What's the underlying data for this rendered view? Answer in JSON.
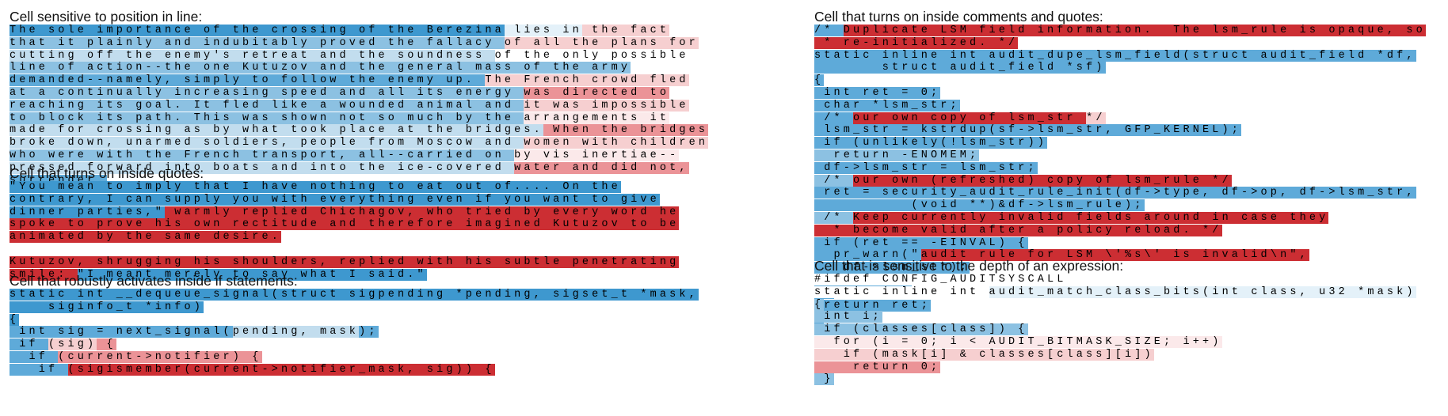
{
  "colors": {
    "scale": [
      "#cc2e33",
      "#dc5a5d",
      "#eb9397",
      "#f6cfd0",
      "#fbe9ea",
      "#ffffff",
      "#e4f1f9",
      "#c2ddee",
      "#8cc1e2",
      "#5eaad9",
      "#3e98cf"
    ]
  },
  "panels": [
    {
      "id": "position",
      "column": "left",
      "top": 11,
      "title": "Cell sensitive to position in line:",
      "lines": [
        [
          [
            "The sole importance of the crossing of the Berezina",
            10
          ],
          [
            " lies in",
            6
          ],
          [
            " the fact",
            3
          ]
        ],
        [
          [
            "that it plainly and indubitably proved the fallacy ",
            8
          ],
          [
            "of all the plans for",
            3
          ]
        ],
        [
          [
            "cutting off the enemy's retreat and the soundness ",
            7
          ],
          [
            "of the only possible",
            5
          ]
        ],
        [
          [
            "line of action--the one Kutuzov and the general mass of the army",
            8
          ]
        ],
        [
          [
            "demanded--namely, simply to follow the enemy up. ",
            9
          ],
          [
            "The French crowd fled",
            3
          ]
        ],
        [
          [
            "at a continually increasing speed and all its energy ",
            8
          ],
          [
            "was directed to",
            2
          ]
        ],
        [
          [
            "reaching its goal. It fled like a wounded animal and ",
            8
          ],
          [
            "it was impossible",
            3
          ]
        ],
        [
          [
            "to block its path. This was shown not so much by the ",
            8
          ],
          [
            "arrangements it",
            4
          ]
        ],
        [
          [
            "made for crossing as by what took place at the bridges.",
            7
          ],
          [
            " When the bridges",
            2
          ]
        ],
        [
          [
            "broke down, unarmed soldiers, people from Moscow and ",
            7
          ],
          [
            "women with children",
            3
          ]
        ],
        [
          [
            "who were with the French transport, all--carried on ",
            8
          ],
          [
            "by vis inertiae--",
            4
          ]
        ],
        [
          [
            "pressed forward into boats and into the ice-covered ",
            7
          ],
          [
            "water and did not,",
            2
          ]
        ],
        [
          [
            "surrender.",
            9
          ]
        ]
      ]
    },
    {
      "id": "quotes",
      "column": "left",
      "top": 209,
      "title": "Cell that turns on inside quotes:",
      "lines": [
        [
          [
            "\"You mean to imply that I have nothing to eat out of.... On the",
            10
          ]
        ],
        [
          [
            "contrary, I can supply you with everything even if you want to give",
            10
          ]
        ],
        [
          [
            "dinner parties,\"",
            10
          ],
          [
            " warmly replied Chichagov, who tried by every word he",
            0
          ]
        ],
        [
          [
            "spoke to prove his own rectitude and therefore imagined Kutuzov to be",
            0
          ]
        ],
        [
          [
            "animated by the same desire.",
            0
          ]
        ],
        "",
        [
          [
            "Kutuzov, shrugging his shoulders, replied with his subtle penetrating",
            0
          ]
        ],
        [
          [
            "smile: ",
            0
          ],
          [
            "\"I meant merely to say what I said.\"",
            10
          ]
        ]
      ]
    },
    {
      "id": "if-statements",
      "column": "left",
      "top": 345,
      "title": "Cell that robustly activates inside if statements:",
      "lines": [
        [
          [
            "static int __dequeue_signal(struct sigpending *pending, sigset_t *mask,",
            10
          ]
        ],
        [
          [
            "    siginfo_t *info)",
            10
          ]
        ],
        [
          [
            "{",
            10
          ]
        ],
        [
          [
            " int sig = next_signal(",
            9
          ],
          [
            "pending, mask",
            7
          ],
          [
            ");",
            9
          ]
        ],
        [
          [
            " if ",
            9
          ],
          [
            "(sig)",
            3
          ],
          [
            " {",
            2
          ]
        ],
        [
          [
            "  if ",
            9
          ],
          [
            "(current->notifier)",
            2
          ],
          [
            " {",
            2
          ]
        ],
        [
          [
            "   if ",
            9
          ],
          [
            "(sigismember(current->notifier_mask, sig)) {",
            0
          ]
        ]
      ]
    },
    {
      "id": "comments",
      "column": "right",
      "top": 11,
      "title": "Cell that turns on inside comments and quotes:",
      "lines": [
        [
          [
            "/* ",
            9
          ],
          [
            "Duplicate LSM field information.  The lsm_rule is opaque, so",
            0
          ]
        ],
        [
          [
            " * re-initialized. */",
            0
          ]
        ],
        [
          [
            "static inline int audit_dupe_lsm_field(struct audit_field *df,",
            9
          ]
        ],
        [
          [
            "       struct audit_field *sf)",
            9
          ]
        ],
        [
          [
            "{",
            9
          ]
        ],
        [
          [
            " int ret = 0;",
            9
          ]
        ],
        [
          [
            " char *lsm_str;",
            9
          ]
        ],
        [
          [
            " /* ",
            9
          ],
          [
            "our own copy of lsm_str ",
            0
          ],
          [
            "*/",
            3
          ]
        ],
        [
          [
            " lsm_str = kstrdup(sf->lsm_str, GFP_KERNEL);",
            9
          ]
        ],
        [
          [
            " if (unlikely(!lsm_str))",
            9
          ]
        ],
        [
          [
            "  return -ENOMEM;",
            8
          ]
        ],
        [
          [
            " df->lsm_str = lsm_str;",
            9
          ]
        ],
        [
          [
            " /* ",
            8
          ],
          [
            "our own (refreshed) copy of lsm_rule */",
            0
          ]
        ],
        [
          [
            " ret = security_audit_rule_init(df->type, df->op, df->lsm_str,",
            9
          ]
        ],
        [
          [
            "          (void **)&df->lsm_rule);",
            9
          ]
        ],
        [
          [
            " /* ",
            8
          ],
          [
            "Keep currently invalid fields around in case they",
            0
          ]
        ],
        [
          [
            "  * become valid after a policy reload. */",
            0
          ]
        ],
        [
          [
            " if (ret == -EINVAL) {",
            9
          ]
        ],
        [
          [
            "  pr_warn(\"",
            9
          ],
          [
            "audit rule for LSM \\'%s\\' is invalid\\n\",",
            0
          ]
        ],
        [
          [
            "   df->lsm_str);",
            9
          ]
        ],
        [
          [
            "  ret = 0;",
            9
          ]
        ],
        [
          [
            " }",
            9
          ]
        ],
        [
          [
            " return ret;",
            9
          ]
        ],
        [
          [
            "}",
            9
          ]
        ]
      ]
    },
    {
      "id": "depth",
      "column": "right",
      "top": 326,
      "title": "Cell that is sensitive to the depth of an expression:",
      "lines": [
        [
          [
            "#ifdef CONFIG_AUDITSYSCALL",
            5
          ]
        ],
        [
          [
            "static inline int ",
            5
          ],
          [
            "audit_match_class_bits(int class, u32 *mask)",
            6
          ]
        ],
        [
          [
            "{",
            8
          ]
        ],
        [
          [
            " int i;",
            8
          ]
        ],
        [
          [
            " if (classes[class]) {",
            8
          ]
        ],
        [
          [
            "  for (i = 0; i < AUDIT_BITMASK_SIZE; i++)",
            4
          ]
        ],
        [
          [
            "   if (mask[i] & classes[class][i])",
            3
          ]
        ],
        [
          [
            "    return 0;",
            2
          ]
        ],
        [
          [
            " }",
            8
          ]
        ]
      ]
    }
  ]
}
